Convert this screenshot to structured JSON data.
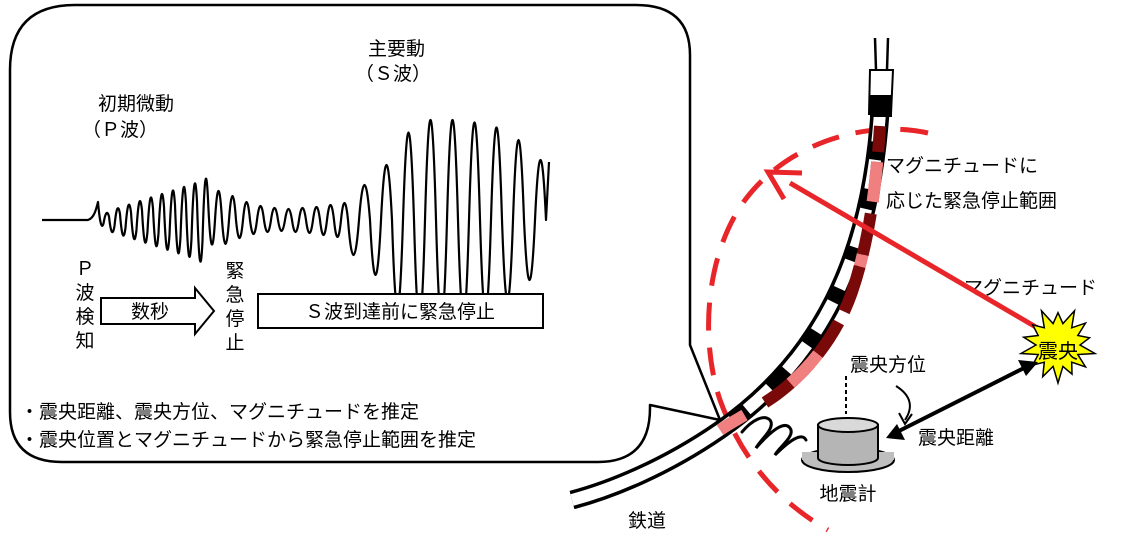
{
  "colors": {
    "accent_red": "#e8262a",
    "rail_dark": "#000000",
    "rail_maroon": "#7a0a0a",
    "rail_pink": "#f08080",
    "seismometer_gray": "#b5b5b5",
    "epicenter_yellow": "#ffff00"
  },
  "wave_panel": {
    "p_wave_title_line1": "初期微動",
    "p_wave_title_line2": "（Ｐ波）",
    "s_wave_title_line1": "主要動",
    "s_wave_title_line2": "（Ｓ波）",
    "p_detect_chars": [
      "Ｐ",
      "波",
      "検",
      "知"
    ],
    "seconds_label": "数秒",
    "emergency_chars": [
      "緊",
      "急",
      "停",
      "止"
    ],
    "s_wave_box_label": "Ｓ波到達前に緊急停止",
    "bullets": [
      "・震央距離、震央方位、マグニチュードを推定",
      "・震央位置とマグニチュードから緊急停止範囲を推定"
    ]
  },
  "map": {
    "stop_range_line1": "マグニチュードに",
    "stop_range_line2": "応じた緊急停止範囲",
    "magnitude_label": "マグニチュード",
    "epicenter_label": "震央",
    "epicenter_direction_label": "震央方位",
    "epicenter_distance_label": "震央距離",
    "seismometer_label": "地震計",
    "railway_label": "鉄道"
  }
}
